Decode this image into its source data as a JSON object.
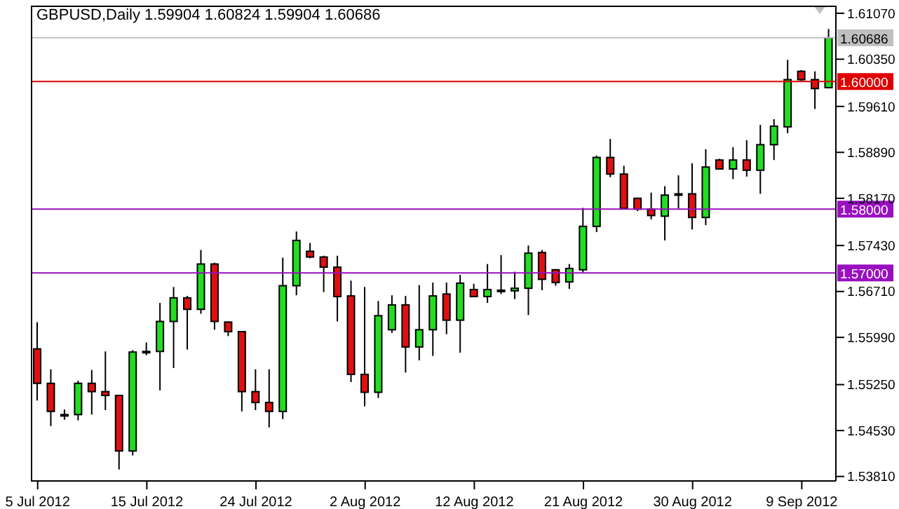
{
  "chart_data": {
    "type": "candlestick",
    "title": "GBPUSD,Daily 1.59904 1.60824 1.59904 1.60686",
    "categories": [
      "5 Jul 2012",
      null,
      null,
      null,
      null,
      null,
      null,
      null,
      "15 Jul 2012",
      null,
      null,
      null,
      null,
      null,
      null,
      null,
      "24 Jul 2012",
      null,
      null,
      null,
      null,
      null,
      null,
      null,
      "2 Aug 2012",
      null,
      null,
      null,
      null,
      null,
      null,
      null,
      "12 Aug 2012",
      null,
      null,
      null,
      null,
      null,
      null,
      null,
      "21 Aug 2012",
      null,
      null,
      null,
      null,
      null,
      null,
      null,
      "30 Aug 2012",
      null,
      null,
      null,
      null,
      null,
      null,
      null,
      "9 Sep 2012",
      null,
      null
    ],
    "ohlc": [
      [
        1.5581,
        1.5623,
        1.55,
        1.5527
      ],
      [
        1.5527,
        1.5549,
        1.546,
        1.5483
      ],
      [
        1.5478,
        1.5486,
        1.547,
        1.5478
      ],
      [
        1.5478,
        1.5531,
        1.5469,
        1.5527
      ],
      [
        1.5527,
        1.5548,
        1.5478,
        1.5514
      ],
      [
        1.5514,
        1.5577,
        1.5485,
        1.5508
      ],
      [
        1.5508,
        1.5509,
        1.5392,
        1.5421
      ],
      [
        1.5421,
        1.5579,
        1.5414,
        1.5576
      ],
      [
        1.5577,
        1.5591,
        1.5571,
        1.5577
      ],
      [
        1.5577,
        1.5653,
        1.5516,
        1.5624
      ],
      [
        1.5624,
        1.5678,
        1.5551,
        1.5661
      ],
      [
        1.5661,
        1.5664,
        1.558,
        1.5643
      ],
      [
        1.5643,
        1.5736,
        1.5636,
        1.5714
      ],
      [
        1.5714,
        1.5716,
        1.5611,
        1.5624
      ],
      [
        1.5623,
        1.5624,
        1.5601,
        1.5608
      ],
      [
        1.5608,
        1.5609,
        1.5483,
        1.5514
      ],
      [
        1.5514,
        1.5549,
        1.5485,
        1.5497
      ],
      [
        1.5497,
        1.5549,
        1.5458,
        1.5483
      ],
      [
        1.5483,
        1.5724,
        1.5471,
        1.568
      ],
      [
        1.568,
        1.5765,
        1.5665,
        1.5751
      ],
      [
        1.5734,
        1.5747,
        1.5723,
        1.5725
      ],
      [
        1.5725,
        1.5727,
        1.567,
        1.5709
      ],
      [
        1.5709,
        1.5727,
        1.5624,
        1.5663
      ],
      [
        1.5664,
        1.5688,
        1.5529,
        1.5541
      ],
      [
        1.5541,
        1.5678,
        1.5491,
        1.5513
      ],
      [
        1.5513,
        1.5656,
        1.5504,
        1.5633
      ],
      [
        1.5611,
        1.5665,
        1.5606,
        1.565
      ],
      [
        1.565,
        1.5664,
        1.5544,
        1.5584
      ],
      [
        1.5584,
        1.5681,
        1.5563,
        1.5611
      ],
      [
        1.5611,
        1.5685,
        1.557,
        1.5664
      ],
      [
        1.5667,
        1.5685,
        1.5604,
        1.5626
      ],
      [
        1.5626,
        1.5697,
        1.5575,
        1.5684
      ],
      [
        1.5674,
        1.5683,
        1.5663,
        1.5663
      ],
      [
        1.5663,
        1.5714,
        1.5653,
        1.5674
      ],
      [
        1.5673,
        1.5728,
        1.5667,
        1.5673
      ],
      [
        1.5672,
        1.5702,
        1.5659,
        1.5676
      ],
      [
        1.5676,
        1.5743,
        1.5634,
        1.5731
      ],
      [
        1.5732,
        1.5736,
        1.5673,
        1.569
      ],
      [
        1.5705,
        1.5706,
        1.568,
        1.5685
      ],
      [
        1.5686,
        1.5714,
        1.5675,
        1.5707
      ],
      [
        1.5705,
        1.5802,
        1.5701,
        1.5773
      ],
      [
        1.5773,
        1.5884,
        1.5764,
        1.5881
      ],
      [
        1.5881,
        1.591,
        1.585,
        1.5855
      ],
      [
        1.5855,
        1.5868,
        1.58,
        1.5801
      ],
      [
        1.5817,
        1.5818,
        1.5797,
        1.58
      ],
      [
        1.58,
        1.5826,
        1.5784,
        1.579
      ],
      [
        1.5789,
        1.5836,
        1.5751,
        1.5822
      ],
      [
        1.5824,
        1.5853,
        1.5801,
        1.5824
      ],
      [
        1.5824,
        1.5872,
        1.5768,
        1.5787
      ],
      [
        1.5787,
        1.5894,
        1.5775,
        1.5866
      ],
      [
        1.5877,
        1.5879,
        1.5863,
        1.5863
      ],
      [
        1.5863,
        1.5897,
        1.5847,
        1.5877
      ],
      [
        1.5877,
        1.5908,
        1.5851,
        1.5861
      ],
      [
        1.5861,
        1.5932,
        1.5824,
        1.5901
      ],
      [
        1.5901,
        1.5941,
        1.5877,
        1.593
      ],
      [
        1.5929,
        1.6034,
        1.5919,
        1.6003
      ],
      [
        1.6016,
        1.6018,
        1.6001,
        1.6003
      ],
      [
        1.6003,
        1.6016,
        1.5957,
        1.5989
      ],
      [
        1.59904,
        1.60824,
        1.59904,
        1.60686
      ]
    ],
    "colors": [
      "#e01010",
      "#e01010",
      "#000000",
      "#22dd22",
      "#e01010",
      "#e01010",
      "#e01010",
      "#22dd22",
      "#000000",
      "#22dd22",
      "#22dd22",
      "#e01010",
      "#22dd22",
      "#e01010",
      "#e01010",
      "#e01010",
      "#e01010",
      "#e01010",
      "#22dd22",
      "#22dd22",
      "#e01010",
      "#e01010",
      "#e01010",
      "#e01010",
      "#e01010",
      "#22dd22",
      "#22dd22",
      "#e01010",
      "#22dd22",
      "#22dd22",
      "#e01010",
      "#22dd22",
      "#e01010",
      "#22dd22",
      "#000000",
      "#22dd22",
      "#22dd22",
      "#e01010",
      "#e01010",
      "#22dd22",
      "#22dd22",
      "#22dd22",
      "#e01010",
      "#e01010",
      "#e01010",
      "#e01010",
      "#22dd22",
      "#000000",
      "#e01010",
      "#22dd22",
      "#e01010",
      "#22dd22",
      "#e01010",
      "#22dd22",
      "#22dd22",
      "#22dd22",
      "#e01010",
      "#e01010",
      "#22dd22"
    ],
    "ylim": [
      1.5374,
      1.6119
    ],
    "yticks": [
      {
        "value": 1.6107,
        "label": "1.61070"
      },
      {
        "value": 1.6035,
        "label": "1.60350"
      },
      {
        "value": 1.5961,
        "label": "1.59610"
      },
      {
        "value": 1.5889,
        "label": "1.58890"
      },
      {
        "value": 1.5817,
        "label": "1.58170"
      },
      {
        "value": 1.5743,
        "label": "1.57430"
      },
      {
        "value": 1.5671,
        "label": "1.56710"
      },
      {
        "value": 1.5599,
        "label": "1.55990"
      },
      {
        "value": 1.5525,
        "label": "1.55250"
      },
      {
        "value": 1.5453,
        "label": "1.54530"
      },
      {
        "value": 1.5381,
        "label": "1.53810"
      }
    ],
    "ref_lines": [
      {
        "axis": "y",
        "value": 1.60686,
        "label": "1.60686",
        "color": "#c0c0c0"
      },
      {
        "axis": "y",
        "value": 1.6,
        "label": "1.60000",
        "color": "#e00000"
      },
      {
        "axis": "y",
        "value": 1.58,
        "label": "1.58000",
        "color": "#9910c0"
      },
      {
        "axis": "y",
        "value": 1.57,
        "label": "1.57000",
        "color": "#9910c0"
      }
    ]
  }
}
